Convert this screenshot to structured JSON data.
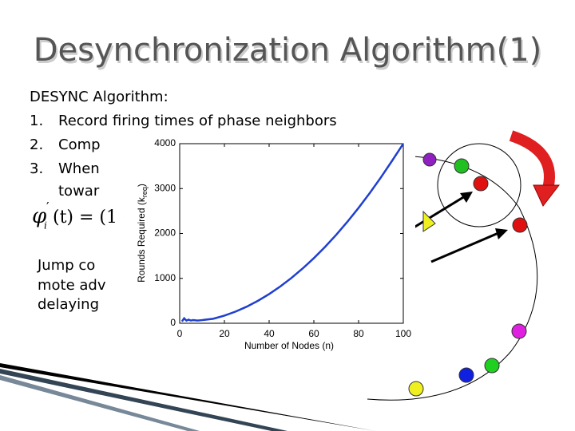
{
  "title": "Desynchronization Algorithm(1)",
  "body": {
    "heading": "DESYNC Algorithm:",
    "items": [
      {
        "number": "1.",
        "text": "Record firing times of phase neighbors"
      },
      {
        "number": "2.",
        "text": "Comp"
      },
      {
        "number": "3.",
        "text": "When"
      }
    ],
    "continuation": "towar",
    "formula": {
      "symbol": "φ",
      "index": "i",
      "prime": "′",
      "rest": "(t) = (1 -"
    },
    "note": [
      "Jump co",
      "mote adv",
      "delaying"
    ]
  },
  "chart_data": {
    "type": "line",
    "xlabel": "Number of Nodes (n)",
    "ylabel": {
      "text": "Rounds Required (k",
      "sub": "req",
      "end": ")"
    },
    "series": [
      {
        "color": "#1f3fd0",
        "x": [
          1,
          2,
          3,
          4,
          5,
          6,
          8,
          10,
          15,
          20,
          25,
          30,
          35,
          40,
          45,
          50,
          55,
          60,
          65,
          70,
          75,
          80,
          85,
          90,
          95,
          100
        ],
        "values": [
          40,
          110,
          60,
          80,
          60,
          70,
          60,
          70,
          100,
          170,
          260,
          370,
          500,
          650,
          820,
          1010,
          1220,
          1450,
          1700,
          1970,
          2260,
          2570,
          2900,
          3250,
          3620,
          4000
        ]
      }
    ],
    "xlim": [
      0,
      100
    ],
    "xticks": [
      0,
      20,
      40,
      60,
      80,
      100
    ],
    "ylim": [
      0,
      4000
    ],
    "yticks": [
      0,
      1000,
      2000,
      3000,
      4000
    ]
  }
}
